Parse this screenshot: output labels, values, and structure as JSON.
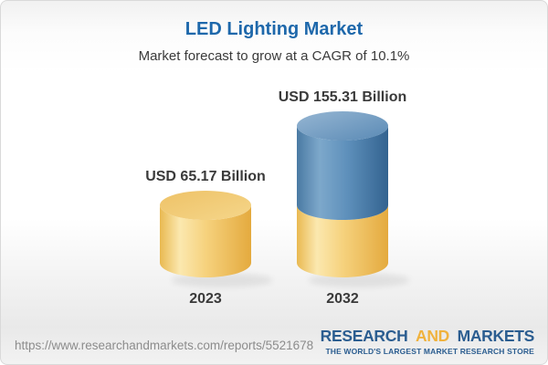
{
  "header": {
    "title": "LED Lighting Market",
    "subtitle": "Market forecast to grow at a CAGR of 10.1%"
  },
  "chart_data": {
    "type": "bar",
    "style": "3d-cylinder",
    "title": "LED Lighting Market",
    "subtitle": "Market forecast to grow at a CAGR of 10.1%",
    "unit": "USD Billion",
    "cagr_pct": 10.1,
    "categories": [
      "2023",
      "2032"
    ],
    "values": [
      65.17,
      155.31
    ],
    "bar_labels": [
      "USD 65.17 Billion",
      "USD 155.31 Billion"
    ],
    "bars": [
      {
        "category": "2023",
        "value": 65.17,
        "label": "USD 65.17 Billion",
        "segments": [
          {
            "palette": "gold",
            "value": 65.17
          }
        ]
      },
      {
        "category": "2032",
        "value": 155.31,
        "label": "USD 155.31 Billion",
        "segments": [
          {
            "palette": "gold",
            "value": 65.17
          },
          {
            "palette": "blue",
            "value": 90.14
          }
        ]
      }
    ],
    "palettes": {
      "gold": {
        "body_stops": [
          [
            "0%",
            "#e9b951"
          ],
          [
            "22%",
            "#fbe8af"
          ],
          [
            "50%",
            "#f6d27e"
          ],
          [
            "100%",
            "#e4aa3e"
          ]
        ],
        "top": [
          "#eec267",
          "#f5d68a"
        ]
      },
      "blue": {
        "body_stops": [
          [
            "0%",
            "#4a7aa3"
          ],
          [
            "25%",
            "#7da8cb"
          ],
          [
            "55%",
            "#5e90bb"
          ],
          [
            "100%",
            "#336390"
          ]
        ],
        "top": [
          "#96b6d3",
          "#5a8ab5"
        ]
      }
    },
    "axes": {
      "y_axis_visible": false,
      "gridlines": false,
      "legend": false
    }
  },
  "footer": {
    "report_url": "https://www.researchandmarkets.com/reports/5521678",
    "logo": {
      "word1": "RESEARCH",
      "word2": "AND",
      "word3": "MARKETS",
      "tagline": "THE WORLD'S LARGEST MARKET RESEARCH STORE"
    }
  },
  "colors": {
    "title_blue": "#1e68ab",
    "text_dark": "#3a3a3a",
    "url_gray": "#8c8c8c",
    "logo_blue": "#2b5d90",
    "logo_gold": "#f0b23d",
    "card_border": "#d9d9d9"
  }
}
